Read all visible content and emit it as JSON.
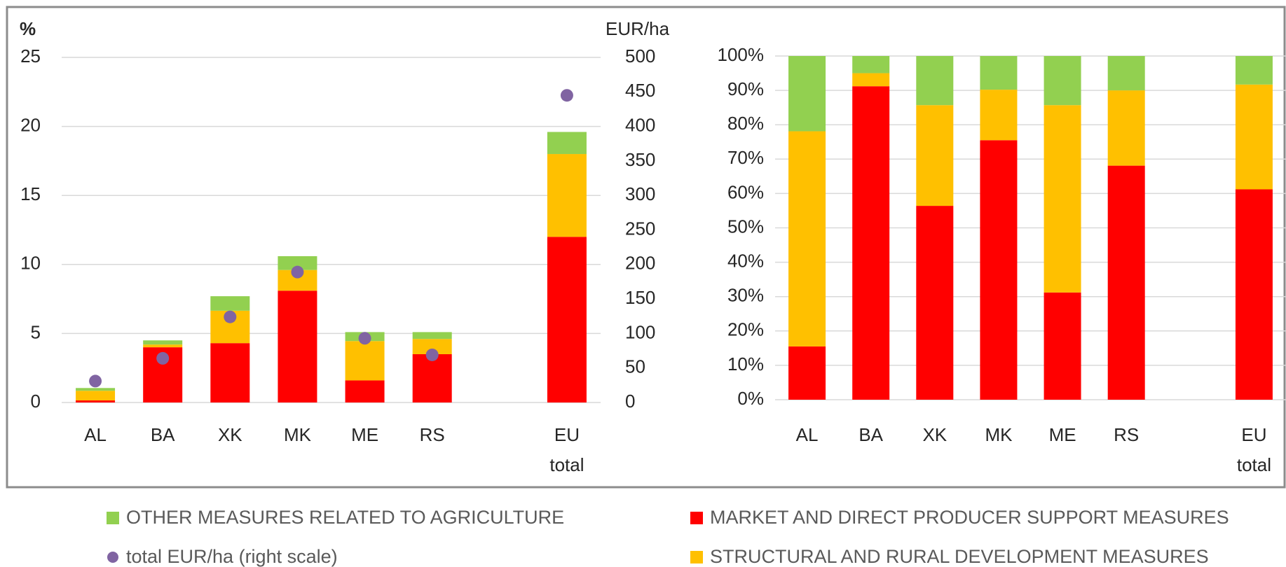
{
  "chart_data": [
    {
      "type": "bar",
      "stacked": true,
      "ylabel": "%",
      "y2label": "EUR/ha",
      "categories": [
        "AL",
        "BA",
        "XK",
        "MK",
        "ME",
        "RS",
        null,
        "EU total"
      ],
      "series": [
        {
          "name": "MARKET AND DIRECT PRODUCER SUPPORT MEASURES",
          "color": "#ff0000",
          "values": [
            0.15,
            4.0,
            4.3,
            8.1,
            1.6,
            3.5,
            null,
            12.0
          ]
        },
        {
          "name": "STRUCTURAL AND RURAL DEVELOPMENT MEASURES",
          "color": "#ffc000",
          "values": [
            0.7,
            0.2,
            2.35,
            1.5,
            2.85,
            1.1,
            null,
            6.0
          ]
        },
        {
          "name": "OTHER MEASURES RELATED TO AGRICULTURE",
          "color": "#92d050",
          "values": [
            0.2,
            0.3,
            1.05,
            1.0,
            0.65,
            0.5,
            null,
            1.6
          ]
        },
        {
          "name": "total EUR/ha (right scale)",
          "type": "scatter",
          "axis": "y2",
          "color": "#8064a2",
          "values": [
            31,
            64,
            124,
            189,
            93,
            69,
            null,
            445
          ]
        }
      ],
      "ylim": [
        0,
        25
      ],
      "yticks": [
        0,
        5,
        10,
        15,
        20,
        25
      ],
      "y2lim": [
        0,
        500
      ],
      "y2ticks": [
        0,
        50,
        100,
        150,
        200,
        250,
        300,
        350,
        400,
        450,
        500
      ],
      "grid": true
    },
    {
      "type": "bar",
      "stacked": true,
      "categories": [
        "AL",
        "BA",
        "XK",
        "MK",
        "ME",
        "RS",
        null,
        "EU total"
      ],
      "series": [
        {
          "color": "#ff0000",
          "values": [
            15.5,
            91.2,
            56.4,
            75.5,
            31.2,
            68.1,
            null,
            61.2
          ]
        },
        {
          "color": "#ffc000",
          "values": [
            62.6,
            3.8,
            29.3,
            14.7,
            54.5,
            21.9,
            null,
            30.5
          ]
        },
        {
          "color": "#92d050",
          "values": [
            21.9,
            5.0,
            14.3,
            9.8,
            14.3,
            10.0,
            null,
            8.3
          ]
        }
      ],
      "ylim": [
        0,
        100
      ],
      "yticks": [
        {
          "value": 0,
          "label": "0%"
        },
        {
          "value": 10,
          "label": "10%"
        },
        {
          "value": 20,
          "label": "20%"
        },
        {
          "value": 30,
          "label": "30%"
        },
        {
          "value": 40,
          "label": "40%"
        },
        {
          "value": 50,
          "label": "50%"
        },
        {
          "value": 60,
          "label": "60%"
        },
        {
          "value": 70,
          "label": "70%"
        },
        {
          "value": 80,
          "label": "80%"
        },
        {
          "value": 90,
          "label": "90%"
        },
        {
          "value": 100,
          "label": "100%"
        }
      ],
      "grid": true
    }
  ]
}
